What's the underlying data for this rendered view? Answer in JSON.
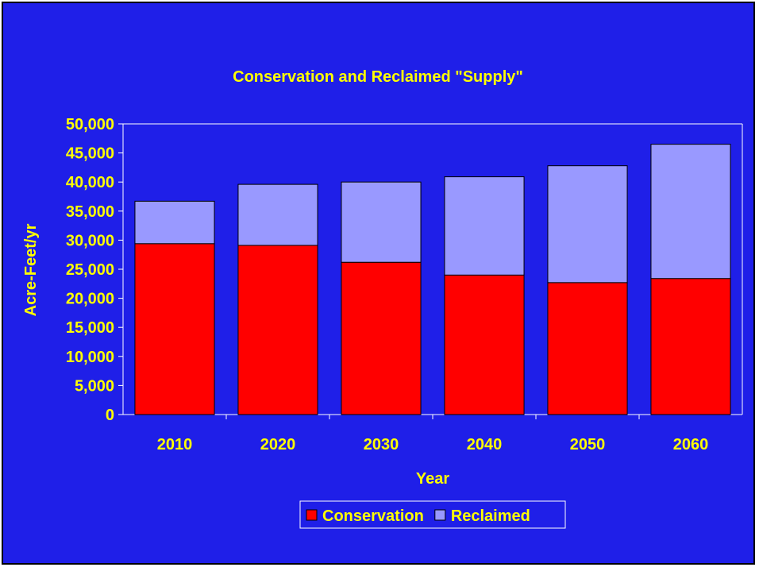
{
  "colors": {
    "background": "#1f1fe8",
    "text": "#ffff00",
    "axis": "#ffffff",
    "conservation": "#ff0000",
    "reclaimed": "#9999ff",
    "bar_outline": "#000000"
  },
  "legend": {
    "items": [
      {
        "label": "Conservation",
        "color": "#ff0000"
      },
      {
        "label": "Reclaimed",
        "color": "#9999ff"
      }
    ],
    "placement": "bottom"
  },
  "chart_data": {
    "type": "bar",
    "stacked": true,
    "title": "Conservation and Reclaimed \"Supply\"",
    "xlabel": "Year",
    "ylabel": "Acre-Feet/yr",
    "categories": [
      "2010",
      "2020",
      "2030",
      "2040",
      "2050",
      "2060"
    ],
    "series": [
      {
        "name": "Conservation",
        "values": [
          29400,
          29100,
          26200,
          24000,
          22700,
          23400
        ]
      },
      {
        "name": "Reclaimed",
        "values": [
          7300,
          10500,
          13800,
          16900,
          20100,
          23100
        ]
      }
    ],
    "ylim": [
      0,
      50000
    ],
    "yticks": [
      0,
      5000,
      10000,
      15000,
      20000,
      25000,
      30000,
      35000,
      40000,
      45000,
      50000
    ],
    "ytick_labels": [
      "0",
      "5,000",
      "10,000",
      "15,000",
      "20,000",
      "25,000",
      "30,000",
      "35,000",
      "40,000",
      "45,000",
      "50,000"
    ],
    "grid": false
  }
}
